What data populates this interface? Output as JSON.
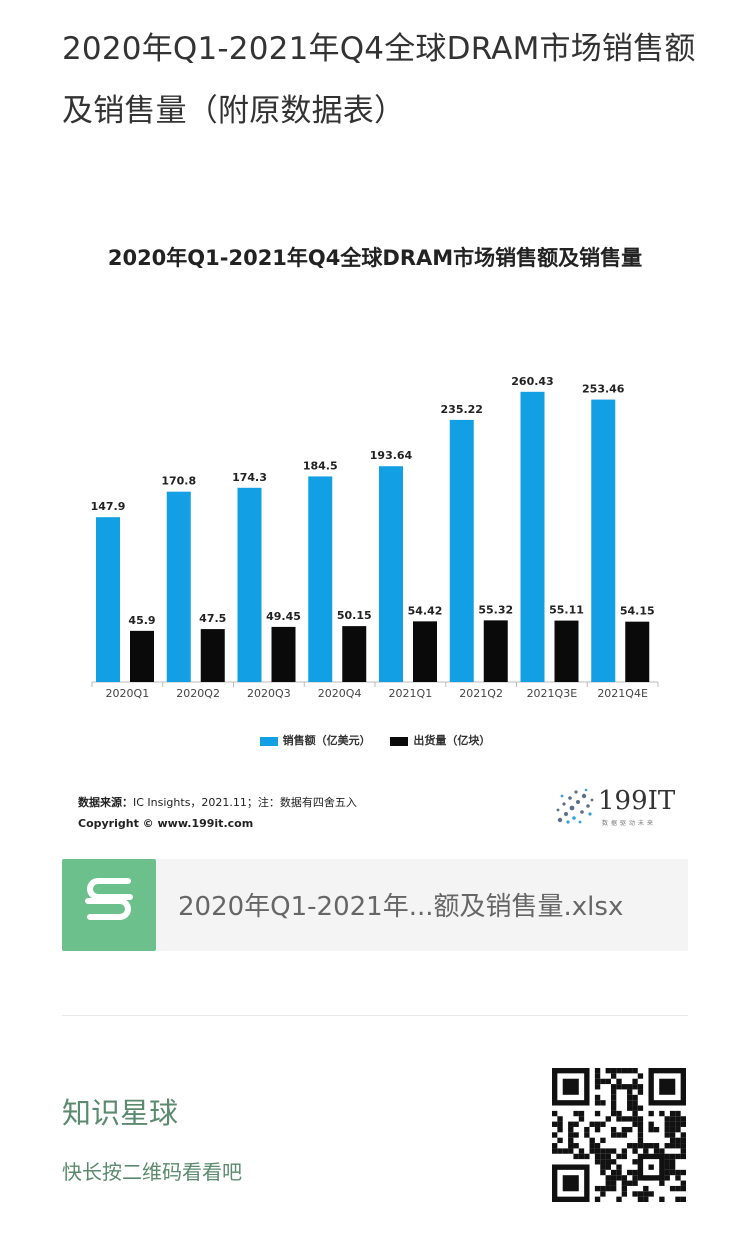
{
  "page": {
    "title": "2020年Q1-2021年Q4全球DRAM市场销售额及销售量（附原数据表）"
  },
  "chart_data": {
    "type": "bar",
    "title": "2020年Q1-2021年Q4全球DRAM市场销售额及销售量",
    "categories": [
      "2020Q1",
      "2020Q2",
      "2020Q3",
      "2020Q4",
      "2021Q1",
      "2021Q2",
      "2021Q3E",
      "2021Q4E"
    ],
    "series": [
      {
        "name": "销售额（亿美元）",
        "color": "#139fe3",
        "values": [
          147.9,
          170.8,
          174.3,
          184.5,
          193.64,
          235.22,
          260.43,
          253.46
        ],
        "labels": [
          "147.9",
          "170.8",
          "174.3",
          "184.5",
          "193.64",
          "235.22",
          "260.43",
          "253.46"
        ]
      },
      {
        "name": "出货量（亿块）",
        "color": "#0a0a0a",
        "values": [
          45.9,
          47.5,
          49.45,
          50.15,
          54.42,
          55.32,
          55.11,
          54.15
        ],
        "labels": [
          "45.9",
          "47.5",
          "49.45",
          "50.15",
          "54.42",
          "55.32",
          "55.11",
          "54.15"
        ]
      }
    ],
    "ylim": [
      0,
      280
    ],
    "legend_position": "bottom",
    "grid": false
  },
  "source": {
    "label": "数据来源：",
    "text": "IC Insights，2021.11；注：数据有四舍五入",
    "copyright": "Copyright © www.199it.com"
  },
  "logo": {
    "text": "199IT",
    "sub": "数据驱动未来"
  },
  "file": {
    "name": "2020年Q1-2021年...额及销售量.xlsx",
    "icon": "spreadsheet-s-icon"
  },
  "knowledge": {
    "title": "知识星球",
    "subtitle": "快长按二维码看看吧"
  }
}
